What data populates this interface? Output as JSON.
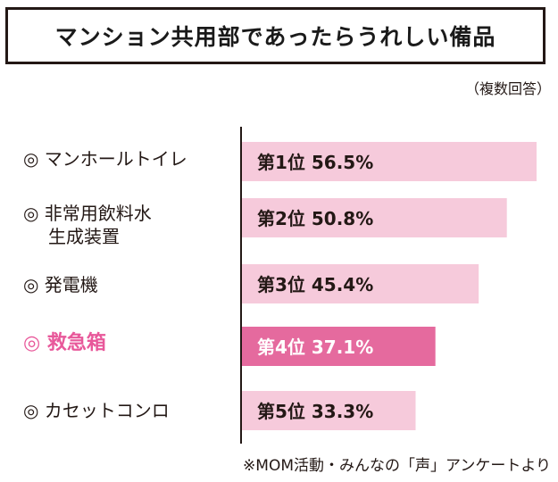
{
  "title": "マンション共用部であったらうれしい備品",
  "note": "（複数回答）",
  "source": "※MOM活動・みんなの「声」アンケートより",
  "colors": {
    "bar": "#f6cadb",
    "bar_highlight": "#e56a9e",
    "axis": "#231815",
    "highlight_text": "#e8589a"
  },
  "items": [
    {
      "label": "◎ マンホールトイレ",
      "label_line2": ""
    },
    {
      "label": "◎ 非常用飲料水",
      "label_line2": "生成装置"
    },
    {
      "label": "◎ 発電機",
      "label_line2": ""
    },
    {
      "label": "◎ 救急箱",
      "label_line2": ""
    },
    {
      "label": "◎ カセットコンロ",
      "label_line2": ""
    }
  ],
  "chart_data": {
    "type": "bar",
    "orientation": "horizontal",
    "title": "マンション共用部であったらうれしい備品",
    "categories": [
      "マンホールトイレ",
      "非常用飲料水生成装置",
      "発電機",
      "救急箱",
      "カセットコンロ"
    ],
    "ranks": [
      "第1位",
      "第2位",
      "第3位",
      "第4位",
      "第5位"
    ],
    "values": [
      56.5,
      50.8,
      45.4,
      37.1,
      33.3
    ],
    "value_labels": [
      "56.5%",
      "50.8%",
      "45.4%",
      "37.1%",
      "33.3%"
    ],
    "highlight_index": 3,
    "xlim": [
      0,
      56.5
    ],
    "grid": false,
    "legend": "none"
  }
}
